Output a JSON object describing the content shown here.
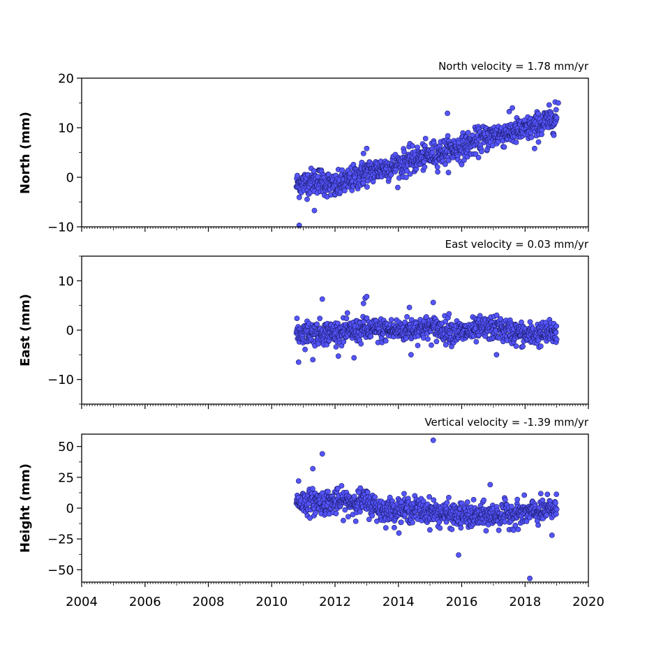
{
  "colors": {
    "marker_fill": "#5555ff",
    "marker_edge": "#1a1a66",
    "axes": "#000000"
  },
  "chart_data": [
    {
      "type": "scatter",
      "title": "North velocity = 1.78 mm/yr",
      "ylabel": "North (mm)",
      "xlabel": "",
      "xlim": [
        2004,
        2020
      ],
      "ylim": [
        -10,
        20
      ],
      "xticks": [
        2004,
        2006,
        2008,
        2010,
        2012,
        2014,
        2016,
        2018,
        2020
      ],
      "yticks": [
        -10,
        0,
        10,
        20
      ],
      "ytick_labels": [
        "−10",
        "0",
        "10",
        "20"
      ],
      "series": [
        {
          "x_range": [
            2010.78,
            2019.0
          ],
          "trend": [
            [
              2010.78,
              -1.5
            ],
            [
              2011.5,
              -0.5
            ],
            [
              2012.0,
              -2.0
            ],
            [
              2013.0,
              1.0
            ],
            [
              2014.0,
              2.5
            ],
            [
              2015.0,
              4.5
            ],
            [
              2016.0,
              6.0
            ],
            [
              2017.0,
              8.5
            ],
            [
              2018.0,
              9.5
            ],
            [
              2019.0,
              12.0
            ]
          ],
          "spread_sd": 1.3,
          "outliers": [
            [
              2010.87,
              -9.7
            ],
            [
              2011.35,
              -6.7
            ],
            [
              2015.55,
              12.9
            ],
            [
              2017.6,
              14.0
            ],
            [
              2018.95,
              15.2
            ],
            [
              2019.05,
              15.0
            ],
            [
              2013.0,
              5.8
            ],
            [
              2012.9,
              4.8
            ],
            [
              2018.3,
              5.8
            ]
          ]
        }
      ]
    },
    {
      "type": "scatter",
      "title": "East velocity = 0.03 mm/yr",
      "ylabel": "East (mm)",
      "xlabel": "",
      "xlim": [
        2004,
        2020
      ],
      "ylim": [
        -15,
        15
      ],
      "xticks": [
        2004,
        2006,
        2008,
        2010,
        2012,
        2014,
        2016,
        2018,
        2020
      ],
      "yticks": [
        -10,
        0,
        10
      ],
      "ytick_labels": [
        "−10",
        "0",
        "10"
      ],
      "series": [
        {
          "x_range": [
            2010.78,
            2019.0
          ],
          "trend": [
            [
              2010.78,
              -0.5
            ],
            [
              2012.0,
              -0.5
            ],
            [
              2013.0,
              0.0
            ],
            [
              2014.0,
              0.0
            ],
            [
              2015.0,
              0.5
            ],
            [
              2016.0,
              -0.5
            ],
            [
              2017.0,
              0.5
            ],
            [
              2018.0,
              -1.0
            ],
            [
              2019.0,
              -0.5
            ]
          ],
          "spread_sd": 1.2,
          "outliers": [
            [
              2010.85,
              -6.5
            ],
            [
              2011.6,
              6.3
            ],
            [
              2012.95,
              6.5
            ],
            [
              2013.0,
              6.8
            ],
            [
              2012.9,
              5.4
            ],
            [
              2015.1,
              5.6
            ],
            [
              2011.3,
              -6.0
            ],
            [
              2012.6,
              -5.6
            ],
            [
              2014.4,
              -5.0
            ],
            [
              2017.1,
              -5.0
            ],
            [
              2014.35,
              4.6
            ],
            [
              2015.6,
              3.3
            ]
          ]
        }
      ]
    },
    {
      "type": "scatter",
      "title": "Vertical velocity = -1.39 mm/yr",
      "ylabel": "Height (mm)",
      "xlabel": "",
      "xlim": [
        2004,
        2020
      ],
      "ylim": [
        -60,
        60
      ],
      "xticks": [
        2004,
        2006,
        2008,
        2010,
        2012,
        2014,
        2016,
        2018,
        2020
      ],
      "xtick_labels": [
        "2004",
        "2006",
        "2008",
        "2010",
        "2012",
        "2014",
        "2016",
        "2018",
        "2020"
      ],
      "yticks": [
        -50,
        -25,
        0,
        25,
        50
      ],
      "ytick_labels": [
        "−50",
        "−25",
        "0",
        "25",
        "50"
      ],
      "series": [
        {
          "x_range": [
            2010.78,
            2019.0
          ],
          "trend": [
            [
              2010.78,
              5.0
            ],
            [
              2012.0,
              5.0
            ],
            [
              2013.0,
              5.0
            ],
            [
              2013.5,
              -2.0
            ],
            [
              2014.5,
              -1.0
            ],
            [
              2015.5,
              -5.0
            ],
            [
              2016.5,
              -7.0
            ],
            [
              2017.5,
              -5.0
            ],
            [
              2018.5,
              -3.0
            ],
            [
              2019.0,
              0.0
            ]
          ],
          "spread_sd": 5.0,
          "outliers": [
            [
              2015.1,
              55.0
            ],
            [
              2011.6,
              44.0
            ],
            [
              2011.3,
              32.0
            ],
            [
              2015.9,
              -38.0
            ],
            [
              2018.15,
              -57.0
            ],
            [
              2018.85,
              -22.0
            ],
            [
              2010.85,
              22.0
            ],
            [
              2016.9,
              19.0
            ]
          ]
        }
      ]
    }
  ]
}
